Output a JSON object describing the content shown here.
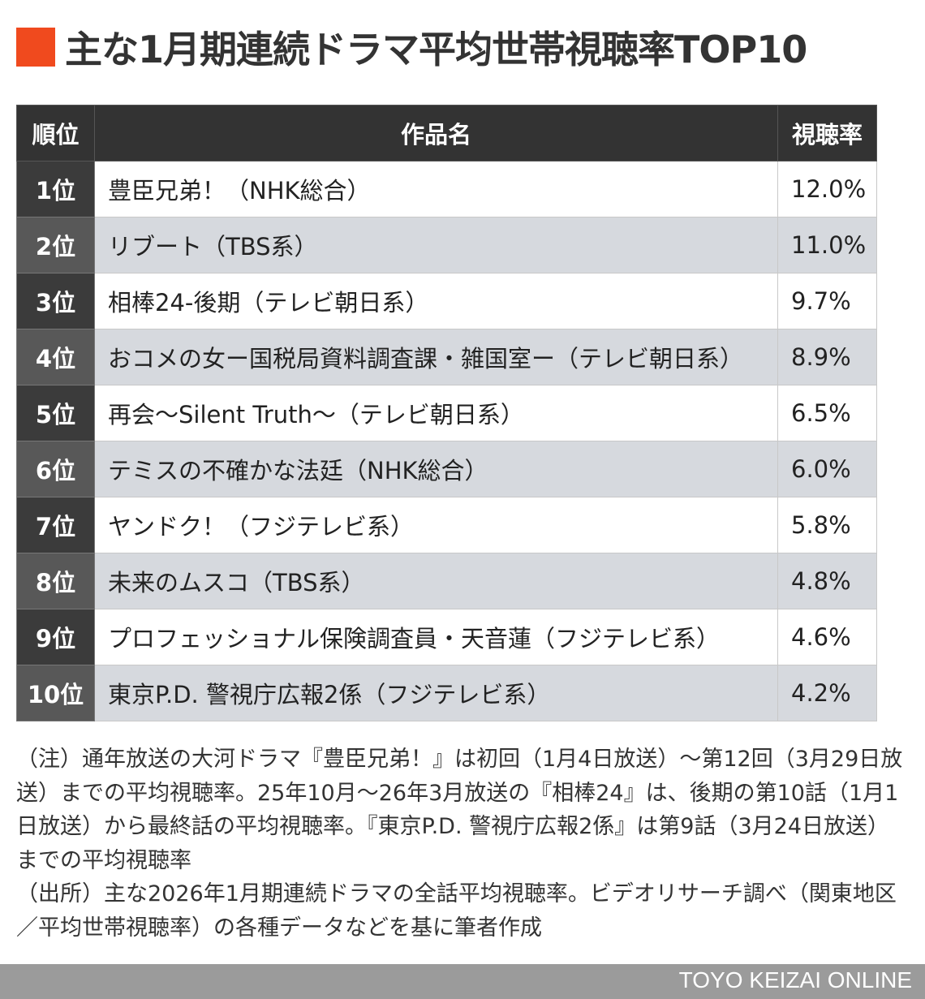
{
  "title": "主な1月期連続ドラマ平均世帯視聴率TOP10",
  "accent_color": "#f04a1e",
  "chart_data": {
    "type": "table",
    "title": "主な1月期連続ドラマ平均世帯視聴率TOP10",
    "columns": [
      "順位",
      "作品名",
      "視聴率"
    ],
    "rows": [
      [
        "1位",
        "豊臣兄弟！（NHK総合）",
        "12.0%"
      ],
      [
        "2位",
        "リブート（TBS系）",
        "11.0%"
      ],
      [
        "3位",
        "相棒24-後期（テレビ朝日系）",
        "9.7%"
      ],
      [
        "4位",
        "おコメの女ー国税局資料調査課・雑国室ー（テレビ朝日系）",
        "8.9%"
      ],
      [
        "5位",
        "再会〜Silent Truth〜（テレビ朝日系）",
        "6.5%"
      ],
      [
        "6位",
        "テミスの不確かな法廷（NHK総合）",
        "6.0%"
      ],
      [
        "7位",
        "ヤンドク！（フジテレビ系）",
        "5.8%"
      ],
      [
        "8位",
        "未来のムスコ（TBS系）",
        "4.8%"
      ],
      [
        "9位",
        "プロフェッショナル保険調査員・天音蓮（フジテレビ系）",
        "4.6%"
      ],
      [
        "10位",
        "東京P.D. 警視庁広報2係（フジテレビ系）",
        "4.2%"
      ]
    ]
  },
  "notes": [
    "（注）通年放送の大河ドラマ『豊臣兄弟！』は初回（1月4日放送）〜第12回（3月29日放送）までの平均視聴率。25年10月〜26年3月放送の『相棒24』は、後期の第10話（1月1日放送）から最終話の平均視聴率。『東京P.D. 警視庁広報2係』は第9話（3月24日放送）までの平均視聴率",
    "（出所）主な2026年1月期連続ドラマの全話平均視聴率。ビデオリサーチ調べ（関東地区／平均世帯視聴率）の各種データなどを基に筆者作成"
  ],
  "footer": "TOYO KEIZAI ONLINE"
}
